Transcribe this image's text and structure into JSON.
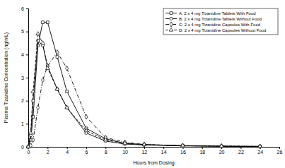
{
  "chart_data": {
    "type": "line",
    "x_label": "Hours from Dosing",
    "y_label": "Plasma Tizanidine Concentration (ng/mL)",
    "x": [
      0,
      0.25,
      0.5,
      1,
      1.5,
      2,
      3,
      4,
      6,
      8,
      10,
      12,
      16,
      20,
      24
    ],
    "series": [
      {
        "name": "A: 2 x 4 mg Tizanidine Tablets With Food",
        "color": "#000000",
        "marker": "square",
        "line_style": "solid",
        "values": [
          0,
          0.3,
          1.3,
          4.4,
          5.4,
          5.4,
          3.9,
          2.4,
          0.8,
          0.35,
          0.15,
          0.1,
          0.05,
          0.03,
          0.02
        ]
      },
      {
        "name": "B: 2 x 4 mg Tizanidine Tablets Without Food",
        "color": "#000000",
        "marker": "circle",
        "line_style": "solid",
        "values": [
          0,
          0.5,
          2.0,
          4.6,
          4.4,
          3.5,
          2.5,
          1.7,
          0.6,
          0.25,
          0.12,
          0.08,
          0.04,
          0.02,
          0.01
        ]
      },
      {
        "name": "C: 2 x 4 mg Tizanidine Capsules With Food",
        "color": "#000000",
        "marker": "diamond",
        "line_style": "dashdot",
        "values": [
          0,
          0.05,
          0.3,
          1.7,
          2.9,
          3.5,
          4.1,
          3.4,
          1.3,
          0.4,
          0.2,
          0.1,
          0.05,
          0.03,
          0.02
        ]
      },
      {
        "name": "D: 2 x 4 mg Tizanidine Capsules Without Food",
        "color": "#000000",
        "marker": "triangle",
        "line_style": "dashed",
        "values": [
          0,
          0.6,
          2.4,
          4.9,
          4.5,
          3.4,
          2.5,
          1.7,
          0.7,
          0.3,
          0.15,
          0.1,
          0.05,
          0.03,
          0.02
        ]
      }
    ],
    "xlim": [
      0,
      26
    ],
    "xticks": [
      0,
      2,
      4,
      6,
      8,
      10,
      12,
      14,
      16,
      18,
      20,
      22,
      24,
      26
    ],
    "ylim": [
      0,
      6
    ],
    "yticks": [
      0,
      1,
      2,
      3,
      4,
      5,
      6
    ],
    "legend": "upper right",
    "grid": false
  }
}
